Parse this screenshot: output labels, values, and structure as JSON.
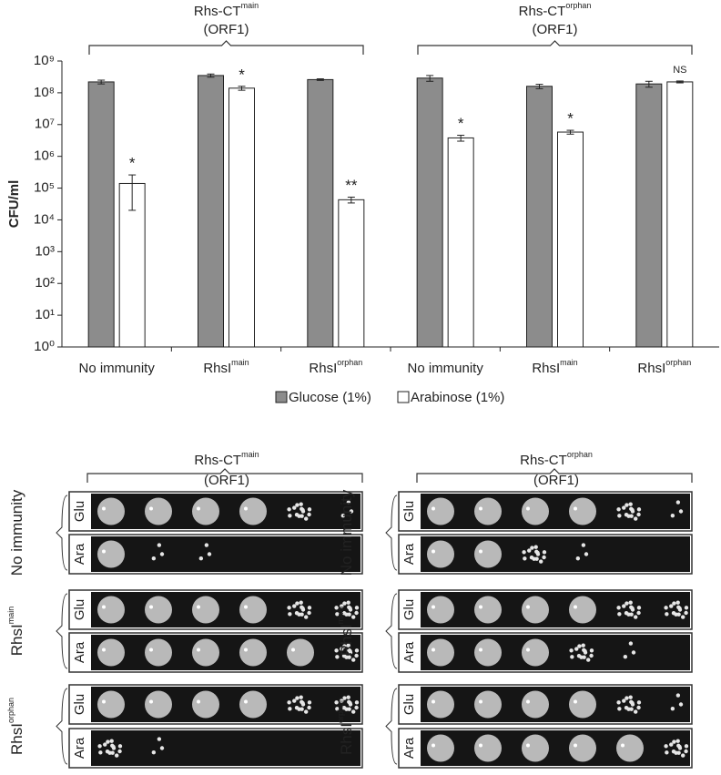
{
  "chart_data": {
    "type": "bar",
    "y_label": "CFU/ml",
    "log_scale": true,
    "legend": "bottom",
    "categories": [
      "No immunity",
      "RhsI",
      "RhsI",
      "No immunity",
      "RhsI",
      "RhsI"
    ],
    "category_superscripts": [
      null,
      "main",
      "orphan",
      null,
      "main",
      "orphan"
    ],
    "groups": [
      {
        "title": "Rhs-CT",
        "title_sup": "main",
        "subtitle": "(ORF1)"
      },
      {
        "title": "Rhs-CT",
        "title_sup": "orphan",
        "subtitle": "(ORF1)"
      }
    ],
    "series": [
      {
        "name": "Glucose (1%)",
        "color": "#8c8c8c",
        "values": [
          220000000,
          350000000,
          260000000,
          290000000,
          160000000,
          190000000
        ],
        "errors": [
          30000000,
          40000000,
          15000000,
          60000000,
          25000000,
          40000000
        ]
      },
      {
        "name": "Arabinose (1%)",
        "color": "#ffffff",
        "values": [
          140000,
          140000000,
          43000,
          3800000,
          5800000,
          220000000
        ],
        "errors": [
          120000,
          20000000,
          9000,
          800000,
          800000,
          15000000
        ],
        "annotations": [
          "*",
          "*",
          "**",
          "*",
          "*",
          "NS"
        ]
      }
    ],
    "ylim": [
      1,
      1000000000
    ],
    "yticks": [
      {
        "value": 1,
        "label": "10⁰"
      },
      {
        "value": 10,
        "label": "10¹"
      },
      {
        "value": 100,
        "label": "10²"
      },
      {
        "value": 1000,
        "label": "10³"
      },
      {
        "value": 10000,
        "label": "10⁴"
      },
      {
        "value": 100000,
        "label": "10⁵"
      },
      {
        "value": 1000000,
        "label": "10⁶"
      },
      {
        "value": 10000000,
        "label": "10⁷"
      },
      {
        "value": 100000000,
        "label": "10⁸"
      },
      {
        "value": 1000000000,
        "label": "10⁹"
      }
    ]
  },
  "spot_panels": {
    "panels": [
      {
        "title": "Rhs-CT",
        "title_sup": "main",
        "subtitle": "(ORF1)"
      },
      {
        "title": "Rhs-CT",
        "title_sup": "orphan",
        "subtitle": "(ORF1)"
      }
    ],
    "row_groups": [
      {
        "label": "No immunity"
      },
      {
        "label": "RhsI",
        "sup": "main"
      },
      {
        "label": "RhsI",
        "sup": "orphan"
      }
    ],
    "conditions": [
      "Glu",
      "Ara"
    ]
  }
}
